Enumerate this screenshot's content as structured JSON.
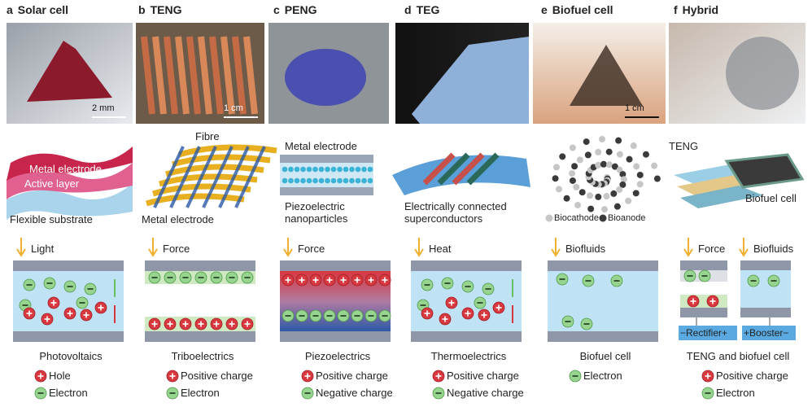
{
  "panels": [
    {
      "letter": "a",
      "title": "Solar cell",
      "scale": "2 mm",
      "schematic_labels": [
        "Metal electrode",
        "Active layer",
        "Flexible substrate"
      ],
      "inputs": [
        "Light"
      ],
      "mechanism": "Photovoltaics",
      "legend": [
        "Hole",
        "Electron"
      ]
    },
    {
      "letter": "b",
      "title": "TENG",
      "scale": "1 cm",
      "schematic_labels": [
        "Fibre",
        "Metal electrode"
      ],
      "inputs": [
        "Force"
      ],
      "mechanism": "Triboelectrics",
      "legend": [
        "Positive charge",
        "Electron"
      ]
    },
    {
      "letter": "c",
      "title": "PENG",
      "schematic_labels": [
        "Metal electrode",
        "Piezoelectric nanoparticles"
      ],
      "inputs": [
        "Force"
      ],
      "mechanism": "Piezoelectrics",
      "legend": [
        "Positive charge",
        "Negative charge"
      ]
    },
    {
      "letter": "d",
      "title": "TEG",
      "schematic_labels": [
        "Electrically connected superconductors"
      ],
      "inputs": [
        "Heat"
      ],
      "mechanism": "Thermoelectrics",
      "legend": [
        "Positive charge",
        "Negative charge"
      ]
    },
    {
      "letter": "e",
      "title": "Biofuel cell",
      "scale": "1 cm",
      "schematic_labels": [
        "Biocathode",
        "Bioanode"
      ],
      "inputs": [
        "Biofluids"
      ],
      "mechanism": "Biofuel cell",
      "legend": [
        "Electron"
      ]
    },
    {
      "letter": "f",
      "title": "Hybrid",
      "schematic_labels": [
        "TENG",
        "Biofuel cell"
      ],
      "inputs": [
        "Force",
        "Biofluids"
      ],
      "mechanism": "TENG and biofuel cell",
      "legend": [
        "Positive charge",
        "Electron"
      ],
      "circuit": [
        "−Rectifier+",
        "+Booster−"
      ]
    }
  ]
}
